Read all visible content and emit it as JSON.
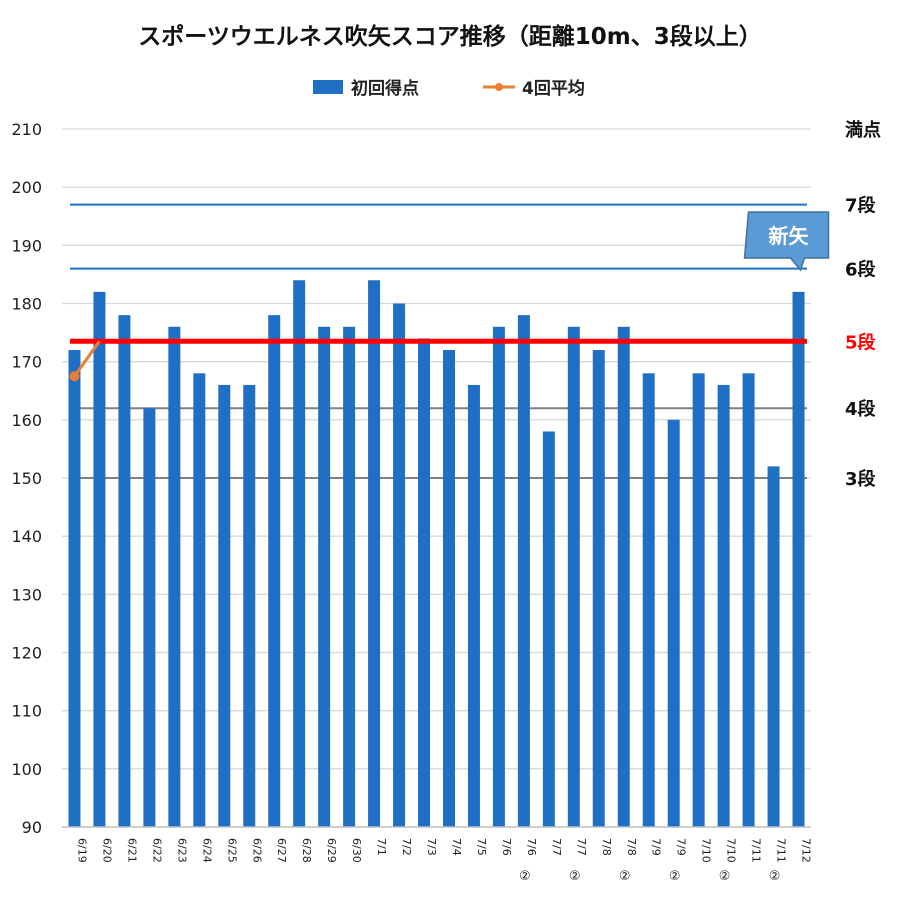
{
  "chart_data": {
    "type": "bar",
    "title": "スポーツウエルネス吹矢スコア推移（距離10m、3段以上）",
    "legend": [
      {
        "name": "初回得点",
        "kind": "bar",
        "color": "#1f6fc5"
      },
      {
        "name": "4回平均",
        "kind": "line",
        "color": "#ed7d31"
      }
    ],
    "legend_position": "top-center",
    "categories": [
      "6/19",
      "6/20",
      "6/21",
      "6/22",
      "6/23",
      "6/24",
      "6/25",
      "6/26",
      "6/27",
      "6/28",
      "6/29",
      "6/30",
      "7/1",
      "7/2",
      "7/3",
      "7/4",
      "7/5",
      "7/6",
      "7/6②",
      "7/7",
      "7/7②",
      "7/8",
      "7/8②",
      "7/9",
      "7/9②",
      "7/10",
      "7/10②",
      "7/11",
      "7/11②",
      "7/12"
    ],
    "series": [
      {
        "name": "初回得点",
        "type": "bar",
        "color": "#1f6fc5",
        "values": [
          172,
          182,
          178,
          162,
          176,
          168,
          166,
          166,
          178,
          184,
          176,
          176,
          184,
          180,
          174,
          172,
          166,
          176,
          178,
          158,
          176,
          172,
          176,
          168,
          160,
          168,
          166,
          168,
          152,
          182
        ]
      },
      {
        "name": "4回平均",
        "type": "line",
        "color": "#ed7d31",
        "values": [
          167.5,
          173.5,
          null,
          null,
          null,
          null,
          null,
          null,
          null,
          null,
          null,
          null,
          null,
          null,
          null,
          null,
          null,
          null,
          null,
          null,
          null,
          null,
          null,
          null,
          null,
          null,
          null,
          null,
          null,
          null
        ]
      }
    ],
    "ylim": [
      90,
      210
    ],
    "yticks": [
      90,
      100,
      110,
      120,
      130,
      140,
      150,
      160,
      170,
      180,
      190,
      200,
      210
    ],
    "xlabel": "",
    "ylabel": "",
    "grid": true,
    "reference_lines": [
      {
        "label": "満点",
        "value": 210,
        "color": "#d9d9d9",
        "text_color": "#111111"
      },
      {
        "label": "7段",
        "value": 197,
        "color": "#1f6fc5",
        "text_color": "#111111"
      },
      {
        "label": "6段",
        "value": 186,
        "color": "#1f6fc5",
        "text_color": "#111111"
      },
      {
        "label": "5段",
        "value": 173.5,
        "color": "#ff0000",
        "text_color": "#ff0000"
      },
      {
        "label": "4段",
        "value": 162,
        "color": "#808080",
        "text_color": "#111111"
      },
      {
        "label": "3段",
        "value": 150,
        "color": "#808080",
        "text_color": "#111111"
      }
    ],
    "annotation": {
      "text": "新矢",
      "category": "7/12",
      "color": "#5b9bd5"
    }
  }
}
